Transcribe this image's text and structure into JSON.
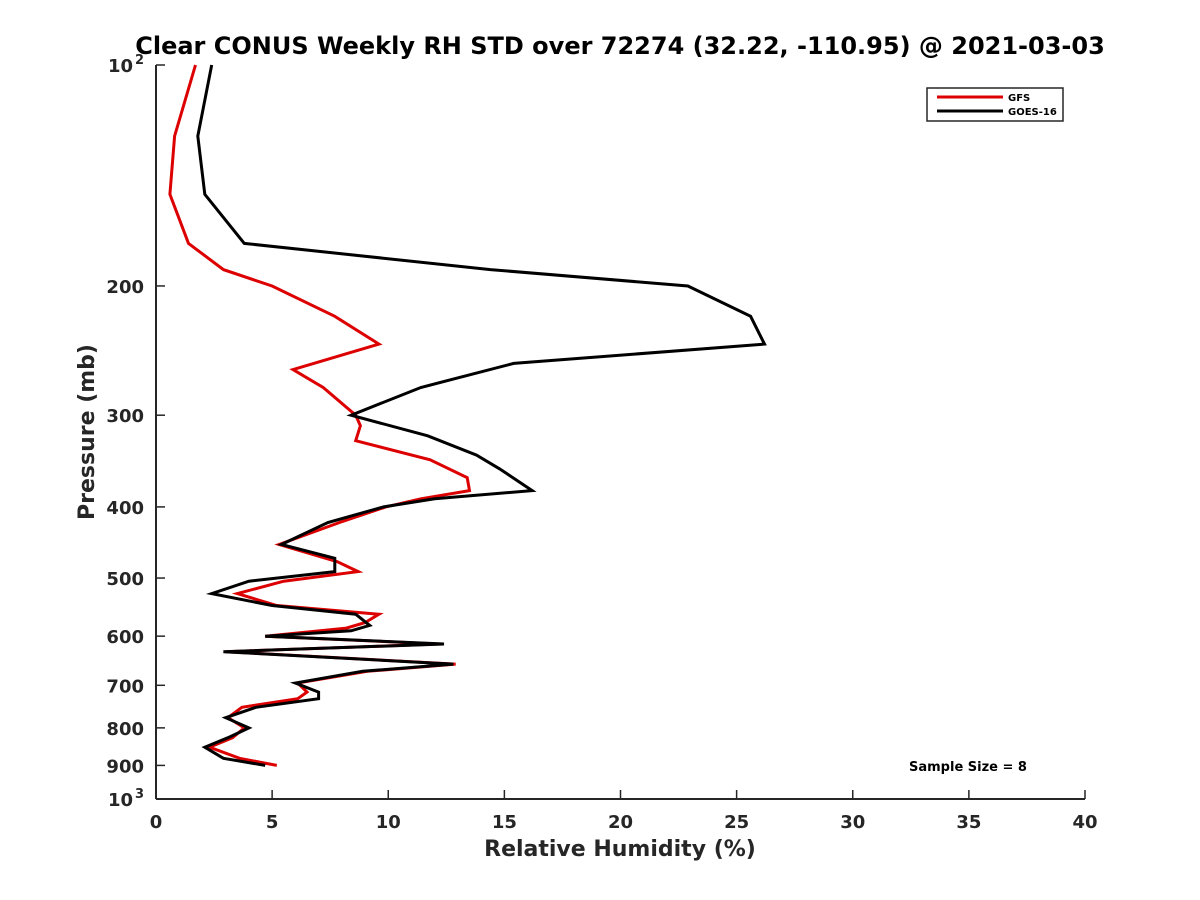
{
  "chart_data": {
    "type": "line",
    "title": "Clear CONUS Weekly RH STD over 72274 (32.22, -110.95) @ 2021-03-03",
    "xlabel": "Relative Humidity (%)",
    "ylabel": "Pressure (mb)",
    "xlim": [
      0,
      40
    ],
    "ylim": [
      100,
      1000
    ],
    "y_scale": "log",
    "y_reversed": true,
    "x_ticks": [
      0,
      5,
      10,
      15,
      20,
      25,
      30,
      35,
      40
    ],
    "x_tick_labels": [
      "0",
      "5",
      "10",
      "15",
      "20",
      "25",
      "30",
      "35",
      "40"
    ],
    "y_ticks": [
      {
        "value": 100,
        "base": "10",
        "exp": "2"
      },
      {
        "value": 200,
        "label": "200"
      },
      {
        "value": 300,
        "label": "300"
      },
      {
        "value": 400,
        "label": "400"
      },
      {
        "value": 500,
        "label": "500"
      },
      {
        "value": 600,
        "label": "600"
      },
      {
        "value": 700,
        "label": "700"
      },
      {
        "value": 800,
        "label": "800"
      },
      {
        "value": 900,
        "label": "900"
      },
      {
        "value": 1000,
        "base": "10",
        "exp": "3"
      }
    ],
    "grid": false,
    "legend_position": "top-right",
    "annotation": "Sample Size = 8",
    "series": [
      {
        "name": "GFS",
        "color": "#dd0000",
        "points": [
          [
            1.7,
            100
          ],
          [
            0.8,
            125
          ],
          [
            0.6,
            150
          ],
          [
            1.4,
            175
          ],
          [
            2.9,
            190
          ],
          [
            5.0,
            200
          ],
          [
            7.7,
            220
          ],
          [
            9.6,
            240
          ],
          [
            5.9,
            260
          ],
          [
            7.2,
            275
          ],
          [
            8.6,
            300
          ],
          [
            8.8,
            310
          ],
          [
            8.6,
            325
          ],
          [
            11.8,
            345
          ],
          [
            13.4,
            365
          ],
          [
            13.5,
            380
          ],
          [
            11.4,
            390
          ],
          [
            9.9,
            400
          ],
          [
            7.9,
            420
          ],
          [
            5.3,
            450
          ],
          [
            7.8,
            475
          ],
          [
            8.7,
            490
          ],
          [
            5.5,
            505
          ],
          [
            3.5,
            525
          ],
          [
            5.2,
            545
          ],
          [
            9.6,
            560
          ],
          [
            9.0,
            575
          ],
          [
            8.2,
            585
          ],
          [
            4.7,
            600
          ],
          [
            12.2,
            615
          ],
          [
            3.0,
            630
          ],
          [
            12.9,
            655
          ],
          [
            9.1,
            670
          ],
          [
            6.1,
            695
          ],
          [
            6.5,
            715
          ],
          [
            6.1,
            730
          ],
          [
            3.7,
            750
          ],
          [
            3.1,
            775
          ],
          [
            3.8,
            800
          ],
          [
            3.3,
            825
          ],
          [
            2.3,
            850
          ],
          [
            3.6,
            880
          ],
          [
            5.2,
            900
          ]
        ]
      },
      {
        "name": "GOES-16",
        "color": "#000000",
        "points": [
          [
            2.4,
            100
          ],
          [
            1.8,
            125
          ],
          [
            2.1,
            150
          ],
          [
            3.8,
            175
          ],
          [
            14.4,
            190
          ],
          [
            22.9,
            200
          ],
          [
            25.6,
            220
          ],
          [
            26.2,
            240
          ],
          [
            15.4,
            255
          ],
          [
            11.4,
            275
          ],
          [
            8.4,
            300
          ],
          [
            11.7,
            320
          ],
          [
            13.8,
            340
          ],
          [
            14.8,
            355
          ],
          [
            16.2,
            380
          ],
          [
            12.0,
            390
          ],
          [
            9.8,
            400
          ],
          [
            7.4,
            420
          ],
          [
            5.4,
            450
          ],
          [
            7.7,
            470
          ],
          [
            7.7,
            490
          ],
          [
            4.0,
            505
          ],
          [
            2.4,
            525
          ],
          [
            5.0,
            545
          ],
          [
            8.6,
            560
          ],
          [
            9.2,
            580
          ],
          [
            8.4,
            590
          ],
          [
            4.7,
            600
          ],
          [
            12.4,
            615
          ],
          [
            2.9,
            630
          ],
          [
            12.8,
            655
          ],
          [
            8.9,
            670
          ],
          [
            6.0,
            695
          ],
          [
            7.0,
            715
          ],
          [
            7.0,
            730
          ],
          [
            4.3,
            750
          ],
          [
            3.0,
            775
          ],
          [
            4.0,
            800
          ],
          [
            3.1,
            825
          ],
          [
            2.1,
            850
          ],
          [
            2.9,
            880
          ],
          [
            4.7,
            900
          ]
        ]
      }
    ]
  }
}
